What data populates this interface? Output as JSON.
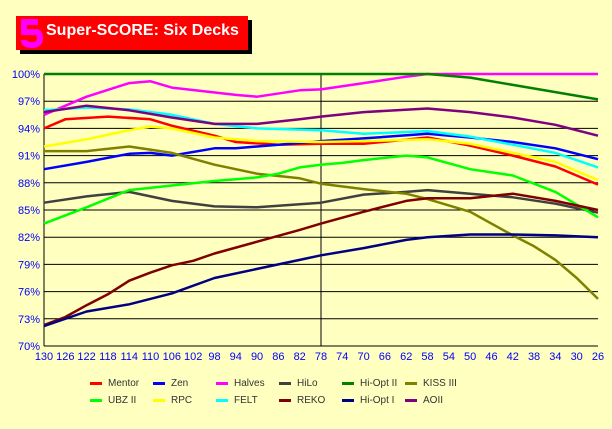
{
  "title": "Super-SCORE: Six Decks",
  "logo_letter": "S",
  "chart_data": {
    "type": "line",
    "title": "Super-SCORE: Six Decks",
    "xlabel": "",
    "ylabel": "",
    "xlim": [
      130,
      26
    ],
    "ylim": [
      70,
      100
    ],
    "x_ticks": [
      130,
      126,
      122,
      118,
      114,
      110,
      106,
      102,
      98,
      94,
      90,
      86,
      82,
      78,
      74,
      70,
      66,
      62,
      58,
      54,
      50,
      46,
      42,
      38,
      34,
      30,
      26
    ],
    "y_ticks": [
      "70%",
      "73%",
      "76%",
      "79%",
      "82%",
      "85%",
      "88%",
      "91%",
      "94%",
      "97%",
      "100%"
    ],
    "y_tick_values": [
      70,
      73,
      76,
      79,
      82,
      85,
      88,
      91,
      94,
      97,
      100
    ],
    "marker_x": 78,
    "grid": "horizontal",
    "legend_position": "bottom",
    "series": [
      {
        "name": "Mentor",
        "color": "#ff0000",
        "x": [
          130,
          126,
          118,
          110,
          106,
          98,
          94,
          86,
          78,
          70,
          58,
          50,
          42,
          34,
          26
        ],
        "y": [
          94,
          95,
          95.3,
          95,
          94.3,
          93.2,
          92.5,
          92.2,
          92.3,
          92.3,
          93,
          92.1,
          91,
          89.8,
          87.8
        ]
      },
      {
        "name": "Zen",
        "color": "#0000ff",
        "x": [
          130,
          122,
          114,
          110,
          106,
          98,
          94,
          86,
          78,
          70,
          58,
          50,
          42,
          34,
          26
        ],
        "y": [
          89.5,
          90.3,
          91.2,
          91.3,
          91,
          91.8,
          91.8,
          92.2,
          92.6,
          92.9,
          93.4,
          93,
          92.5,
          91.8,
          90.6
        ]
      },
      {
        "name": "Halves",
        "color": "#ff00ff",
        "x": [
          130,
          122,
          114,
          110,
          106,
          94,
          90,
          82,
          78,
          70,
          62,
          58,
          26
        ],
        "y": [
          95.5,
          97.5,
          99,
          99.2,
          98.5,
          97.7,
          97.5,
          98.2,
          98.3,
          99,
          99.7,
          100,
          100
        ]
      },
      {
        "name": "HiLo",
        "color": "#404040",
        "x": [
          130,
          122,
          114,
          106,
          98,
          90,
          78,
          70,
          62,
          58,
          50,
          42,
          34,
          26
        ],
        "y": [
          85.8,
          86.5,
          87,
          86,
          85.4,
          85.3,
          85.8,
          86.7,
          87,
          87.2,
          86.8,
          86.4,
          85.7,
          84.7
        ]
      },
      {
        "name": "Hi-Opt II",
        "color": "#008000",
        "x": [
          130,
          58,
          50,
          42,
          34,
          26
        ],
        "y": [
          100,
          100,
          99.6,
          98.8,
          98,
          97.2
        ]
      },
      {
        "name": "KISS III",
        "color": "#808000",
        "x": [
          130,
          122,
          114,
          106,
          98,
          90,
          82,
          78,
          70,
          62,
          58,
          50,
          42,
          38,
          34,
          30,
          26
        ],
        "y": [
          91.5,
          91.5,
          92,
          91.3,
          90,
          89,
          88.5,
          87.9,
          87.3,
          86.8,
          86.2,
          84.8,
          82.2,
          81,
          79.5,
          77.5,
          75.2
        ]
      },
      {
        "name": "UBZ II",
        "color": "#00ff00",
        "x": [
          130,
          122,
          114,
          106,
          98,
          90,
          86,
          82,
          78,
          74,
          70,
          62,
          58,
          50,
          42,
          34,
          26
        ],
        "y": [
          83.5,
          85.3,
          87.2,
          87.7,
          88.2,
          88.6,
          89,
          89.7,
          90,
          90.2,
          90.5,
          91,
          90.8,
          89.5,
          88.8,
          87,
          84.2
        ]
      },
      {
        "name": "RPC",
        "color": "#ffff00",
        "x": [
          130,
          122,
          114,
          110,
          106,
          98,
          90,
          78,
          70,
          58,
          50,
          42,
          34,
          26
        ],
        "y": [
          92,
          92.8,
          93.8,
          94.2,
          94,
          93,
          92.6,
          92.5,
          92.6,
          92.8,
          92.3,
          91.3,
          90.3,
          88.3
        ]
      },
      {
        "name": "FELT",
        "color": "#00ffff",
        "x": [
          130,
          122,
          114,
          106,
          98,
          90,
          78,
          70,
          58,
          50,
          42,
          34,
          26
        ],
        "y": [
          96,
          96.3,
          96.1,
          95.5,
          94.5,
          94,
          93.8,
          93.4,
          93.7,
          93.1,
          92.2,
          91.3,
          89.7
        ]
      },
      {
        "name": "REKO",
        "color": "#800000",
        "x": [
          130,
          126,
          122,
          118,
          114,
          110,
          106,
          102,
          98,
          90,
          82,
          78,
          70,
          62,
          58,
          50,
          42,
          34,
          26
        ],
        "y": [
          72.3,
          73.2,
          74.5,
          75.7,
          77.2,
          78.1,
          78.9,
          79.4,
          80.2,
          81.5,
          82.8,
          83.5,
          84.8,
          86,
          86.3,
          86.3,
          86.8,
          86,
          85
        ]
      },
      {
        "name": "Hi-Opt I",
        "color": "#000080",
        "x": [
          130,
          122,
          114,
          106,
          98,
          90,
          82,
          78,
          70,
          62,
          58,
          50,
          42,
          34,
          26
        ],
        "y": [
          72.2,
          73.8,
          74.6,
          75.8,
          77.5,
          78.5,
          79.5,
          80,
          80.8,
          81.7,
          82,
          82.3,
          82.3,
          82.2,
          82
        ]
      },
      {
        "name": "AOII",
        "color": "#800080",
        "x": [
          130,
          122,
          114,
          106,
          98,
          90,
          82,
          78,
          70,
          58,
          50,
          42,
          34,
          26
        ],
        "y": [
          95.8,
          96.5,
          96,
          95.2,
          94.5,
          94.5,
          95,
          95.3,
          95.8,
          96.2,
          95.8,
          95.2,
          94.4,
          93.2
        ]
      }
    ]
  }
}
